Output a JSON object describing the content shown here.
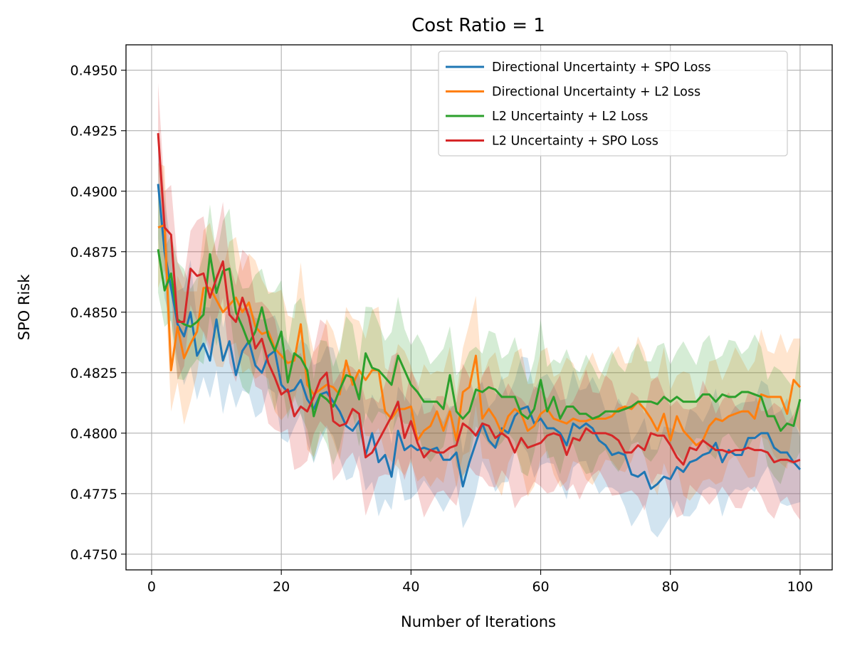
{
  "chart_data": {
    "type": "line",
    "title": "Cost Ratio = 1",
    "xlabel": "Number of Iterations",
    "ylabel": "SPO Risk",
    "xlim": [
      -3.95,
      104.95
    ],
    "ylim": [
      0.47435,
      0.49605
    ],
    "xticks": [
      0,
      20,
      40,
      60,
      80,
      100
    ],
    "yticks": [
      0.475,
      0.4775,
      0.48,
      0.4825,
      0.485,
      0.4875,
      0.49,
      0.4925,
      0.495
    ],
    "ytick_labels": [
      "0.4750",
      "0.4775",
      "0.4800",
      "0.4825",
      "0.4850",
      "0.4875",
      "0.4900",
      "0.4925",
      "0.4950"
    ],
    "grid": true,
    "legend_position": "top-right",
    "x": [
      1,
      2,
      3,
      4,
      5,
      6,
      7,
      8,
      9,
      10,
      11,
      12,
      13,
      14,
      15,
      16,
      17,
      18,
      19,
      20,
      21,
      22,
      23,
      24,
      25,
      26,
      27,
      28,
      29,
      30,
      31,
      32,
      33,
      34,
      35,
      36,
      37,
      38,
      39,
      40,
      41,
      42,
      43,
      44,
      45,
      46,
      47,
      48,
      49,
      50,
      51,
      52,
      53,
      54,
      55,
      56,
      57,
      58,
      59,
      60,
      61,
      62,
      63,
      64,
      65,
      66,
      67,
      68,
      69,
      70,
      71,
      72,
      73,
      74,
      75,
      76,
      77,
      78,
      79,
      80,
      81,
      82,
      83,
      84,
      85,
      86,
      87,
      88,
      89,
      90,
      91,
      92,
      93,
      94,
      95,
      96,
      97,
      98,
      99,
      100
    ],
    "series": [
      {
        "name": "Directional Uncertainty + SPO Loss",
        "color": "#1f77b4",
        "band_halfwidth": 0.0018,
        "values": [
          0.4903,
          0.4875,
          0.486,
          0.4845,
          0.484,
          0.485,
          0.4832,
          0.4837,
          0.483,
          0.4847,
          0.483,
          0.4838,
          0.4824,
          0.4834,
          0.4838,
          0.4828,
          0.4825,
          0.4832,
          0.4834,
          0.482,
          0.4817,
          0.4818,
          0.4822,
          0.4814,
          0.481,
          0.4816,
          0.4817,
          0.4813,
          0.4809,
          0.4803,
          0.4801,
          0.4805,
          0.4791,
          0.48,
          0.4788,
          0.4791,
          0.4782,
          0.4801,
          0.4793,
          0.4795,
          0.4793,
          0.4794,
          0.4793,
          0.4794,
          0.4789,
          0.4789,
          0.4792,
          0.4778,
          0.4788,
          0.4796,
          0.4804,
          0.4797,
          0.4794,
          0.4802,
          0.48,
          0.4807,
          0.481,
          0.4811,
          0.4804,
          0.4806,
          0.4802,
          0.4802,
          0.48,
          0.4795,
          0.4804,
          0.4802,
          0.4804,
          0.4802,
          0.4797,
          0.4795,
          0.4791,
          0.4792,
          0.4791,
          0.4783,
          0.4782,
          0.4784,
          0.4777,
          0.4779,
          0.4782,
          0.4781,
          0.4786,
          0.4784,
          0.4788,
          0.4789,
          0.4791,
          0.4792,
          0.4796,
          0.4788,
          0.4793,
          0.4791,
          0.4791,
          0.4798,
          0.4798,
          0.48,
          0.48,
          0.4794,
          0.4792,
          0.4792,
          0.4788,
          0.4785
        ]
      },
      {
        "name": "Directional Uncertainty + L2 Loss",
        "color": "#ff7f0e",
        "band_halfwidth": 0.0022,
        "values": [
          0.4885,
          0.4886,
          0.4826,
          0.4844,
          0.4831,
          0.4837,
          0.4842,
          0.486,
          0.486,
          0.4855,
          0.485,
          0.4853,
          0.4856,
          0.485,
          0.4854,
          0.4844,
          0.4841,
          0.4842,
          0.4835,
          0.4832,
          0.4829,
          0.483,
          0.4845,
          0.482,
          0.4816,
          0.4818,
          0.482,
          0.4819,
          0.4816,
          0.483,
          0.482,
          0.4826,
          0.4822,
          0.4826,
          0.4826,
          0.4809,
          0.4806,
          0.481,
          0.481,
          0.4811,
          0.4797,
          0.4801,
          0.4803,
          0.4809,
          0.4801,
          0.4809,
          0.4797,
          0.4817,
          0.4819,
          0.4832,
          0.4806,
          0.481,
          0.4806,
          0.48,
          0.4807,
          0.481,
          0.4808,
          0.4801,
          0.4803,
          0.4808,
          0.481,
          0.4806,
          0.4805,
          0.4804,
          0.4806,
          0.4805,
          0.4805,
          0.4806,
          0.4806,
          0.4806,
          0.4807,
          0.481,
          0.4811,
          0.481,
          0.4813,
          0.481,
          0.4806,
          0.4801,
          0.4808,
          0.4797,
          0.4807,
          0.4801,
          0.4798,
          0.4795,
          0.4797,
          0.4803,
          0.4806,
          0.4805,
          0.4807,
          0.4808,
          0.4809,
          0.4809,
          0.4806,
          0.4816,
          0.4815,
          0.4815,
          0.4815,
          0.4808,
          0.4822,
          0.4819
        ]
      },
      {
        "name": "L2 Uncertainty + L2 Loss",
        "color": "#2ca02c",
        "band_halfwidth": 0.002,
        "values": [
          0.4876,
          0.4859,
          0.4866,
          0.4847,
          0.4845,
          0.4844,
          0.4846,
          0.4849,
          0.4874,
          0.4858,
          0.4867,
          0.4868,
          0.485,
          0.4844,
          0.4837,
          0.4842,
          0.4852,
          0.484,
          0.4834,
          0.4842,
          0.4821,
          0.4833,
          0.4831,
          0.4826,
          0.4807,
          0.4816,
          0.4814,
          0.4811,
          0.4818,
          0.4824,
          0.4823,
          0.4814,
          0.4833,
          0.4827,
          0.4826,
          0.4823,
          0.482,
          0.4832,
          0.4826,
          0.482,
          0.4817,
          0.4813,
          0.4813,
          0.4813,
          0.481,
          0.4824,
          0.4809,
          0.4806,
          0.4809,
          0.4818,
          0.4817,
          0.4819,
          0.4818,
          0.4815,
          0.4815,
          0.4815,
          0.4808,
          0.4806,
          0.481,
          0.4822,
          0.4809,
          0.4815,
          0.4806,
          0.4811,
          0.4811,
          0.4808,
          0.4808,
          0.4806,
          0.4807,
          0.4809,
          0.4809,
          0.4809,
          0.481,
          0.4811,
          0.4813,
          0.4813,
          0.4813,
          0.4812,
          0.4815,
          0.4813,
          0.4815,
          0.4813,
          0.4813,
          0.4813,
          0.4816,
          0.4816,
          0.4813,
          0.4816,
          0.4815,
          0.4815,
          0.4817,
          0.4817,
          0.4816,
          0.4815,
          0.4807,
          0.4807,
          0.4801,
          0.4804,
          0.4803,
          0.4814
        ]
      },
      {
        "name": "L2 Uncertainty + SPO Loss",
        "color": "#d62728",
        "band_halfwidth": 0.002,
        "values": [
          0.4924,
          0.4885,
          0.4882,
          0.4846,
          0.4846,
          0.4868,
          0.4865,
          0.4866,
          0.4856,
          0.4864,
          0.4871,
          0.4849,
          0.4846,
          0.4856,
          0.4848,
          0.4835,
          0.4839,
          0.4829,
          0.4823,
          0.4816,
          0.4818,
          0.4807,
          0.4811,
          0.4809,
          0.4815,
          0.4822,
          0.4825,
          0.4805,
          0.4803,
          0.4804,
          0.481,
          0.4808,
          0.479,
          0.4792,
          0.4797,
          0.4802,
          0.4807,
          0.4813,
          0.4798,
          0.4805,
          0.4796,
          0.479,
          0.4793,
          0.4792,
          0.4792,
          0.4794,
          0.4795,
          0.4804,
          0.4802,
          0.4799,
          0.4804,
          0.4803,
          0.4798,
          0.48,
          0.4798,
          0.4792,
          0.4798,
          0.4794,
          0.4795,
          0.4796,
          0.4799,
          0.48,
          0.4799,
          0.4791,
          0.4798,
          0.4797,
          0.4802,
          0.48,
          0.48,
          0.48,
          0.4799,
          0.4797,
          0.4792,
          0.4792,
          0.4795,
          0.4793,
          0.48,
          0.4799,
          0.4799,
          0.4795,
          0.479,
          0.4787,
          0.4794,
          0.4793,
          0.4797,
          0.4795,
          0.4793,
          0.4793,
          0.4792,
          0.4793,
          0.4793,
          0.4794,
          0.4793,
          0.4793,
          0.4792,
          0.4788,
          0.4789,
          0.4789,
          0.4788,
          0.4789
        ]
      }
    ]
  }
}
